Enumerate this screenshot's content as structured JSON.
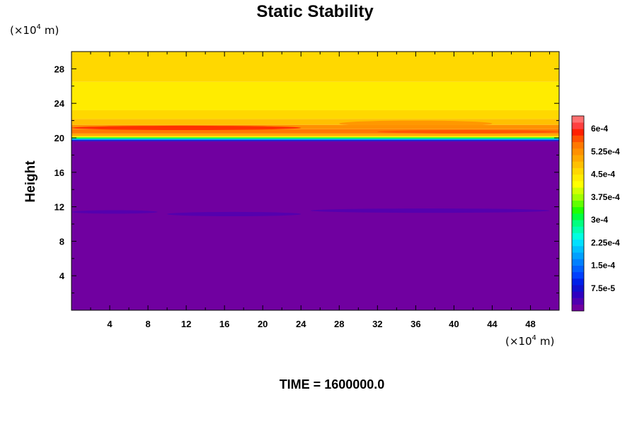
{
  "chart_data": {
    "type": "heatmap",
    "title": "Static Stability",
    "ylabel": "Height",
    "x_unit": "m",
    "y_unit": "m",
    "unit_scale_label": "×10",
    "unit_scale_exponent": "4",
    "xlim": [
      0,
      51
    ],
    "ylim": [
      0,
      30
    ],
    "x_ticks": [
      4,
      8,
      12,
      16,
      20,
      24,
      28,
      32,
      36,
      40,
      44,
      48
    ],
    "y_ticks": [
      4,
      8,
      12,
      16,
      20,
      24,
      28
    ],
    "time_label": "TIME = 1600000.0",
    "colorbar": {
      "min": 0,
      "max": 0.000642,
      "tick_values": [
        7.5e-05,
        0.00015,
        0.000225,
        0.0003,
        0.000375,
        0.00045,
        0.000525,
        0.0006
      ],
      "tick_labels": [
        "7.5e-5",
        "1.5e-4",
        "2.25e-4",
        "3e-4",
        "3.75e-4",
        "4.5e-4",
        "5.25e-4",
        "6e-4"
      ],
      "colors": [
        "#7000a0",
        "#5000b0",
        "#3000c0",
        "#1010d0",
        "#0020e8",
        "#0040ff",
        "#0060ff",
        "#0080ff",
        "#00a0ff",
        "#00c0ff",
        "#00e0ff",
        "#00ffe0",
        "#00ffb0",
        "#00ff80",
        "#00ff40",
        "#20ff00",
        "#60ff00",
        "#a0ff00",
        "#d0ff00",
        "#ffff00",
        "#ffec00",
        "#ffd800",
        "#ffc000",
        "#ffa800",
        "#ff9000",
        "#ff7800",
        "#ff5000",
        "#ff2000",
        "#ff4040",
        "#ff7070"
      ]
    },
    "field_layers": [
      {
        "y_bottom": 0,
        "y_top": 19.6,
        "value": 1e-05
      },
      {
        "y_bottom": 19.6,
        "y_top": 19.75,
        "value": 8e-05
      },
      {
        "y_bottom": 19.75,
        "y_top": 19.9,
        "value": 0.00018
      },
      {
        "y_bottom": 19.9,
        "y_top": 20.05,
        "value": 0.0003
      },
      {
        "y_bottom": 20.05,
        "y_top": 20.2,
        "value": 0.00042
      },
      {
        "y_bottom": 20.2,
        "y_top": 20.5,
        "value": 0.00051
      },
      {
        "y_bottom": 20.5,
        "y_top": 21.0,
        "value": 0.00054
      },
      {
        "y_bottom": 21.0,
        "y_top": 21.5,
        "value": 0.00052
      },
      {
        "y_bottom": 21.5,
        "y_top": 22.2,
        "value": 0.00049
      },
      {
        "y_bottom": 22.2,
        "y_top": 23.2,
        "value": 0.00046
      },
      {
        "y_bottom": 23.2,
        "y_top": 26.5,
        "value": 0.00044
      },
      {
        "y_bottom": 26.5,
        "y_top": 30,
        "value": 0.00046
      }
    ],
    "field_features": [
      {
        "x_start": 0,
        "x_end": 24,
        "y_bottom": 20.9,
        "y_top": 21.4,
        "value": 0.00058
      },
      {
        "x_start": 28,
        "x_end": 44,
        "y_bottom": 21.3,
        "y_top": 22.0,
        "value": 0.00053
      },
      {
        "x_start": 32,
        "x_end": 51,
        "y_bottom": 20.5,
        "y_top": 20.9,
        "value": 0.00056
      },
      {
        "x_start": 0,
        "x_end": 9,
        "y_bottom": 11.2,
        "y_top": 11.6,
        "value": 4e-05
      },
      {
        "x_start": 10,
        "x_end": 24,
        "y_bottom": 10.9,
        "y_top": 11.4,
        "value": 4e-05
      },
      {
        "x_start": 25,
        "x_end": 50,
        "y_bottom": 11.3,
        "y_top": 11.8,
        "value": 4e-05
      }
    ]
  }
}
